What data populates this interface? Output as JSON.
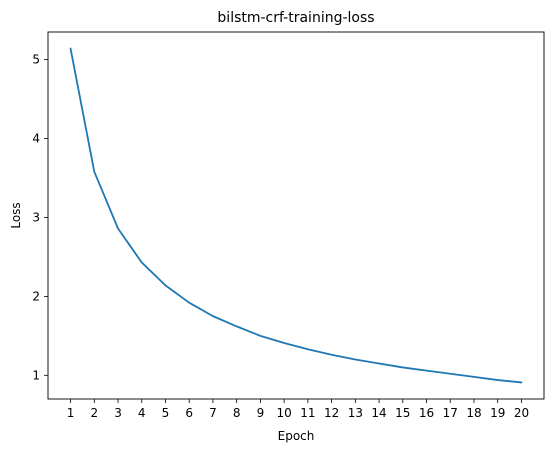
{
  "chart_data": {
    "type": "line",
    "title": "bilstm-crf-training-loss",
    "xlabel": "Epoch",
    "ylabel": "Loss",
    "x": [
      1,
      2,
      3,
      4,
      5,
      6,
      7,
      8,
      9,
      10,
      11,
      12,
      13,
      14,
      15,
      16,
      17,
      18,
      19,
      20
    ],
    "xticks": [
      "1",
      "2",
      "3",
      "4",
      "5",
      "6",
      "7",
      "8",
      "9",
      "10",
      "11",
      "12",
      "13",
      "14",
      "15",
      "16",
      "17",
      "18",
      "19",
      "20"
    ],
    "yticks": [
      "1",
      "2",
      "3",
      "4",
      "5"
    ],
    "series": [
      {
        "color": "#1f77b4",
        "values": [
          5.14,
          3.58,
          2.86,
          2.43,
          2.14,
          1.92,
          1.75,
          1.62,
          1.5,
          1.41,
          1.33,
          1.26,
          1.2,
          1.15,
          1.1,
          1.06,
          1.02,
          0.98,
          0.94,
          0.91
        ]
      }
    ],
    "xlim": [
      0.05,
      20.95
    ],
    "ylim": [
      0.7,
      5.35
    ],
    "grid": false,
    "legend": "none"
  }
}
